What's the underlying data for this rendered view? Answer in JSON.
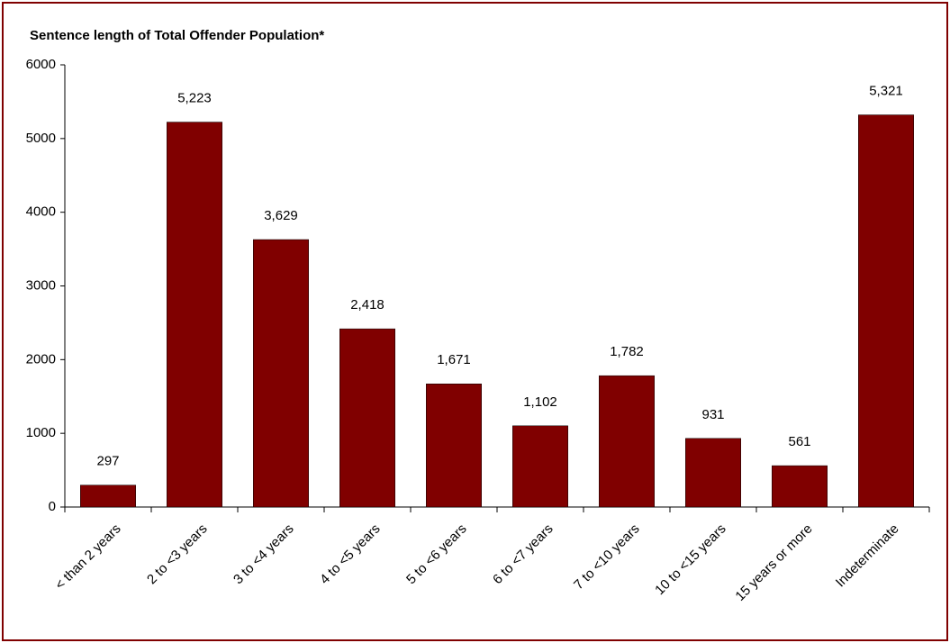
{
  "chart_data": {
    "type": "bar",
    "title": "Sentence length of Total Offender Population*",
    "categories": [
      "< than 2 years",
      "2 to <3 years",
      "3 to <4 years",
      "4 to <5 years",
      "5 to <6 years",
      "6 to <7 years",
      "7 to <10 years",
      "10 to <15 years",
      "15 years or more",
      "Indeterminate"
    ],
    "values": [
      297,
      5223,
      3629,
      2418,
      1671,
      1102,
      1782,
      931,
      561,
      5321
    ],
    "value_labels": [
      "297",
      "5,223",
      "3,629",
      "2,418",
      "1,671",
      "1,102",
      "1,782",
      "931",
      "561",
      "5,321"
    ],
    "color": "#800000",
    "ylim": [
      0,
      6000
    ],
    "yticks": [
      0,
      1000,
      2000,
      3000,
      4000,
      5000,
      6000
    ],
    "grid": false
  }
}
